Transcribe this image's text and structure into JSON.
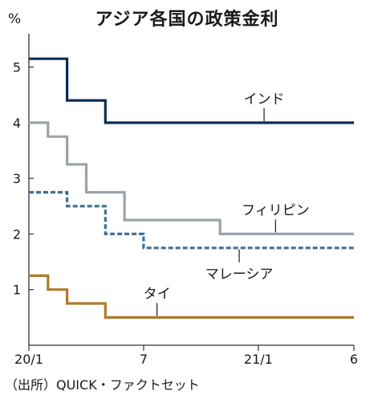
{
  "title": "アジア各国の政策金利",
  "unit": "%",
  "source": "（出所）QUICK・ファクトセット",
  "chart_data": {
    "type": "line",
    "step": true,
    "title": "アジア各国の政策金利",
    "ylabel": "%",
    "xlim": [
      0,
      17
    ],
    "ylim": [
      0,
      5.6
    ],
    "yticks": [
      1,
      2,
      3,
      4,
      5
    ],
    "xticks": [
      {
        "x": 0,
        "label": "20/1"
      },
      {
        "x": 6,
        "label": "7"
      },
      {
        "x": 12,
        "label": "21/1"
      },
      {
        "x": 17,
        "label": "6"
      }
    ],
    "series": [
      {
        "name": "インド",
        "color": "#0b2d52",
        "dash": "solid",
        "points": [
          [
            0,
            5.15
          ],
          [
            2,
            5.15
          ],
          [
            2,
            4.4
          ],
          [
            4,
            4.4
          ],
          [
            4,
            4.0
          ],
          [
            17,
            4.0
          ]
        ]
      },
      {
        "name": "フィリピン",
        "color": "#9aa3ad",
        "dash": "solid",
        "points": [
          [
            0,
            4.0
          ],
          [
            1,
            4.0
          ],
          [
            1,
            3.75
          ],
          [
            2,
            3.75
          ],
          [
            2,
            3.25
          ],
          [
            3,
            3.25
          ],
          [
            3,
            2.75
          ],
          [
            5,
            2.75
          ],
          [
            5,
            2.25
          ],
          [
            10,
            2.25
          ],
          [
            10,
            2.0
          ],
          [
            17,
            2.0
          ]
        ]
      },
      {
        "name": "マレーシア",
        "color": "#3f6f96",
        "dash": "dashed",
        "points": [
          [
            0,
            2.75
          ],
          [
            2,
            2.75
          ],
          [
            2,
            2.5
          ],
          [
            4,
            2.5
          ],
          [
            4,
            2.0
          ],
          [
            6,
            2.0
          ],
          [
            6,
            1.75
          ],
          [
            17,
            1.75
          ]
        ]
      },
      {
        "name": "タイ",
        "color": "#b07a2a",
        "dash": "solid",
        "points": [
          [
            0,
            1.25
          ],
          [
            1,
            1.25
          ],
          [
            1,
            1.0
          ],
          [
            2,
            1.0
          ],
          [
            2,
            0.75
          ],
          [
            4,
            0.75
          ],
          [
            4,
            0.5
          ],
          [
            17,
            0.5
          ]
        ]
      }
    ],
    "labels": [
      {
        "series": "インド",
        "text": "インド",
        "x": 12.3
      },
      {
        "series": "フィリピン",
        "text": "フィリピン",
        "x": 12.9
      },
      {
        "series": "マレーシア",
        "text": "マレーシア",
        "x": 11.0
      },
      {
        "series": "タイ",
        "text": "タイ",
        "x": 6.7
      }
    ],
    "grid": false,
    "legend": "inline-labels"
  }
}
